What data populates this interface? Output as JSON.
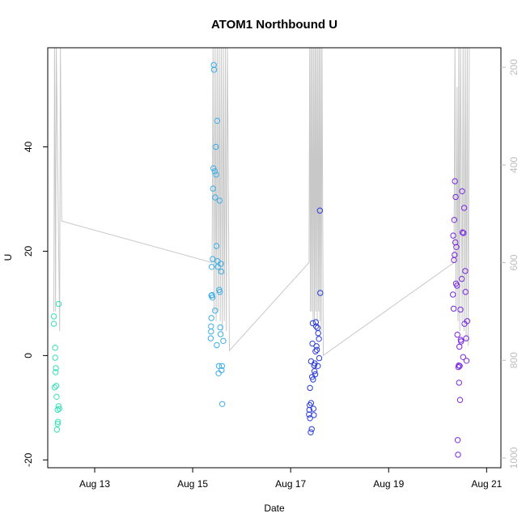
{
  "chart_data": {
    "type": "scatter",
    "title": "ATOM1 Northbound U",
    "xlabel": "Date",
    "ylabel": "U",
    "xlim": [
      "2023-08-12 01:00",
      "2023-08-21 07:00"
    ],
    "ylim": [
      -21.5,
      59
    ],
    "x_ticks": [
      {
        "date": "2023-08-13",
        "label": "Aug 13"
      },
      {
        "date": "2023-08-15",
        "label": "Aug 15"
      },
      {
        "date": "2023-08-17",
        "label": "Aug 17"
      },
      {
        "date": "2023-08-19",
        "label": "Aug 19"
      },
      {
        "date": "2023-08-21",
        "label": "Aug 21"
      }
    ],
    "y_ticks": [
      -20,
      0,
      20,
      40
    ],
    "y2_ticks": [
      200,
      400,
      600,
      800,
      1000
    ],
    "y2_lim": [
      1020,
      160
    ],
    "grid": false,
    "legend": "none",
    "colors": {
      "line": "#c8c8c8",
      "g1": "#36e0b8",
      "g2": "#3aaee8",
      "g3": "#2a3bd8",
      "g4": "#7a2ae0"
    },
    "depth_trace": [
      [
        "2023-08-12 04:00",
        700
      ],
      [
        "2023-08-12 04:20",
        150
      ],
      [
        "2023-08-12 04:50",
        700
      ],
      [
        "2023-08-12 05:10",
        150
      ],
      [
        "2023-08-12 06:50",
        740
      ],
      [
        "2023-08-12 07:10",
        150
      ],
      [
        "2023-08-12 07:50",
        515
      ],
      [
        "2023-08-15 09:30",
        600
      ],
      [
        "2023-08-15 10:00",
        150
      ],
      [
        "2023-08-15 10:30",
        700
      ],
      [
        "2023-08-15 11:00",
        150
      ],
      [
        "2023-08-15 11:30",
        720
      ],
      [
        "2023-08-15 12:00",
        150
      ],
      [
        "2023-08-15 12:30",
        700
      ],
      [
        "2023-08-15 13:00",
        150
      ],
      [
        "2023-08-15 13:30",
        720
      ],
      [
        "2023-08-15 14:00",
        150
      ],
      [
        "2023-08-15 14:30",
        740
      ],
      [
        "2023-08-15 15:00",
        150
      ],
      [
        "2023-08-15 15:30",
        720
      ],
      [
        "2023-08-15 16:00",
        150
      ],
      [
        "2023-08-15 16:30",
        740
      ],
      [
        "2023-08-15 17:00",
        150
      ],
      [
        "2023-08-15 18:00",
        780
      ],
      [
        "2023-08-17 09:00",
        600
      ],
      [
        "2023-08-17 09:20",
        150
      ],
      [
        "2023-08-17 09:40",
        700
      ],
      [
        "2023-08-17 10:00",
        150
      ],
      [
        "2023-08-17 10:20",
        700
      ],
      [
        "2023-08-17 10:40",
        150
      ],
      [
        "2023-08-17 11:00",
        720
      ],
      [
        "2023-08-17 11:20",
        150
      ],
      [
        "2023-08-17 11:40",
        720
      ],
      [
        "2023-08-17 12:00",
        150
      ],
      [
        "2023-08-17 12:20",
        700
      ],
      [
        "2023-08-17 12:40",
        150
      ],
      [
        "2023-08-17 13:00",
        720
      ],
      [
        "2023-08-17 13:20",
        150
      ],
      [
        "2023-08-17 13:40",
        700
      ],
      [
        "2023-08-17 14:00",
        150
      ],
      [
        "2023-08-17 14:20",
        720
      ],
      [
        "2023-08-17 14:40",
        150
      ],
      [
        "2023-08-17 15:00",
        740
      ],
      [
        "2023-08-17 15:20",
        150
      ],
      [
        "2023-08-17 16:00",
        790
      ],
      [
        "2023-08-20 08:00",
        600
      ],
      [
        "2023-08-20 08:30",
        150
      ],
      [
        "2023-08-20 09:00",
        700
      ],
      [
        "2023-08-20 09:30",
        240
      ],
      [
        "2023-08-20 10:00",
        720
      ],
      [
        "2023-08-20 10:20",
        160
      ],
      [
        "2023-08-20 10:50",
        740
      ],
      [
        "2023-08-20 11:10",
        150
      ],
      [
        "2023-08-20 12:00",
        720
      ],
      [
        "2023-08-20 12:30",
        150
      ],
      [
        "2023-08-20 13:00",
        740
      ],
      [
        "2023-08-20 13:30",
        150
      ],
      [
        "2023-08-20 14:00",
        760
      ],
      [
        "2023-08-20 14:30",
        150
      ],
      [
        "2023-08-20 15:00",
        770
      ],
      [
        "2023-08-20 15:30",
        150
      ]
    ],
    "series": [
      {
        "color_key": "g1",
        "points": [
          [
            "2023-08-12 04:00",
            7.5
          ],
          [
            "2023-08-12 04:00",
            6.1
          ],
          [
            "2023-08-12 04:20",
            -6.1
          ],
          [
            "2023-08-12 04:40",
            1.5
          ],
          [
            "2023-08-12 04:40",
            -0.4
          ],
          [
            "2023-08-12 04:50",
            -3.2
          ],
          [
            "2023-08-12 05:00",
            -2.4
          ],
          [
            "2023-08-12 05:10",
            -5.8
          ],
          [
            "2023-08-12 05:20",
            -7.9
          ],
          [
            "2023-08-12 05:30",
            -14.2
          ],
          [
            "2023-08-12 05:50",
            -13.1
          ],
          [
            "2023-08-12 05:50",
            -10.4
          ],
          [
            "2023-08-12 06:00",
            -12.7
          ],
          [
            "2023-08-12 06:20",
            -9.7
          ],
          [
            "2023-08-12 06:20",
            9.9
          ],
          [
            "2023-08-12 06:40",
            -10.2
          ]
        ]
      },
      {
        "color_key": "g2",
        "points": [
          [
            "2023-08-15 08:50",
            3.3
          ],
          [
            "2023-08-15 09:00",
            4.6
          ],
          [
            "2023-08-15 09:00",
            5.6
          ],
          [
            "2023-08-15 09:10",
            7.2
          ],
          [
            "2023-08-15 09:10",
            11.5
          ],
          [
            "2023-08-15 09:20",
            17.0
          ],
          [
            "2023-08-15 09:30",
            11.6
          ],
          [
            "2023-08-15 09:40",
            11.1
          ],
          [
            "2023-08-15 09:50",
            18.5
          ],
          [
            "2023-08-15 10:00",
            32.0
          ],
          [
            "2023-08-15 10:10",
            35.9
          ],
          [
            "2023-08-15 10:20",
            55.7
          ],
          [
            "2023-08-15 10:30",
            54.8
          ],
          [
            "2023-08-15 10:50",
            35.3
          ],
          [
            "2023-08-15 11:00",
            30.3
          ],
          [
            "2023-08-15 11:00",
            8.6
          ],
          [
            "2023-08-15 11:20",
            40.0
          ],
          [
            "2023-08-15 11:30",
            34.7
          ],
          [
            "2023-08-15 11:40",
            21.0
          ],
          [
            "2023-08-15 11:50",
            2.0
          ],
          [
            "2023-08-15 12:00",
            45.0
          ],
          [
            "2023-08-15 12:10",
            18.1
          ],
          [
            "2023-08-15 12:20",
            17.0
          ],
          [
            "2023-08-15 12:40",
            -3.4
          ],
          [
            "2023-08-15 12:50",
            -2.0
          ],
          [
            "2023-08-15 13:00",
            12.6
          ],
          [
            "2023-08-15 13:10",
            29.7
          ],
          [
            "2023-08-15 13:20",
            12.2
          ],
          [
            "2023-08-15 13:30",
            5.4
          ],
          [
            "2023-08-15 13:40",
            4.1
          ],
          [
            "2023-08-15 13:50",
            17.6
          ],
          [
            "2023-08-15 14:00",
            16.1
          ],
          [
            "2023-08-15 14:10",
            -2.8
          ],
          [
            "2023-08-15 14:20",
            -2.0
          ],
          [
            "2023-08-15 14:30",
            -9.3
          ],
          [
            "2023-08-15 15:00",
            2.8
          ]
        ]
      },
      {
        "color_key": "g3",
        "points": [
          [
            "2023-08-17 09:00",
            -11.3
          ],
          [
            "2023-08-17 09:10",
            -10.4
          ],
          [
            "2023-08-17 09:20",
            -9.5
          ],
          [
            "2023-08-17 09:30",
            -6.2
          ],
          [
            "2023-08-17 09:30",
            -12.0
          ],
          [
            "2023-08-17 09:50",
            -14.7
          ],
          [
            "2023-08-17 10:00",
            -1.1
          ],
          [
            "2023-08-17 10:00",
            -9.1
          ],
          [
            "2023-08-17 10:20",
            -14.1
          ],
          [
            "2023-08-17 10:30",
            -4.1
          ],
          [
            "2023-08-17 10:40",
            2.3
          ],
          [
            "2023-08-17 10:50",
            6.2
          ],
          [
            "2023-08-17 11:00",
            -4.6
          ],
          [
            "2023-08-17 11:10",
            -10.2
          ],
          [
            "2023-08-17 11:20",
            -11.4
          ],
          [
            "2023-08-17 11:30",
            -1.9
          ],
          [
            "2023-08-17 11:40",
            -3.0
          ],
          [
            "2023-08-17 11:50",
            -1.5
          ],
          [
            "2023-08-17 12:00",
            -3.6
          ],
          [
            "2023-08-17 12:10",
            0.8
          ],
          [
            "2023-08-17 12:20",
            6.4
          ],
          [
            "2023-08-17 12:30",
            5.6
          ],
          [
            "2023-08-17 12:40",
            1.8
          ],
          [
            "2023-08-17 12:50",
            1.1
          ],
          [
            "2023-08-17 13:10",
            5.3
          ],
          [
            "2023-08-17 13:20",
            -2.0
          ],
          [
            "2023-08-17 13:30",
            4.3
          ],
          [
            "2023-08-17 13:50",
            3.2
          ],
          [
            "2023-08-17 14:00",
            -0.5
          ],
          [
            "2023-08-17 14:20",
            27.8
          ],
          [
            "2023-08-17 14:30",
            12.0
          ]
        ]
      },
      {
        "color_key": "g4",
        "points": [
          [
            "2023-08-20 07:30",
            11.7
          ],
          [
            "2023-08-20 07:40",
            23.0
          ],
          [
            "2023-08-20 07:50",
            9.0
          ],
          [
            "2023-08-20 08:00",
            18.3
          ],
          [
            "2023-08-20 08:10",
            26.0
          ],
          [
            "2023-08-20 08:20",
            19.3
          ],
          [
            "2023-08-20 08:30",
            33.4
          ],
          [
            "2023-08-20 08:40",
            21.7
          ],
          [
            "2023-08-20 08:50",
            30.4
          ],
          [
            "2023-08-20 09:00",
            13.8
          ],
          [
            "2023-08-20 09:10",
            20.8
          ],
          [
            "2023-08-20 09:30",
            13.4
          ],
          [
            "2023-08-20 09:40",
            4.0
          ],
          [
            "2023-08-20 09:50",
            -16.2
          ],
          [
            "2023-08-20 10:00",
            -19.0
          ],
          [
            "2023-08-20 10:10",
            -2.2
          ],
          [
            "2023-08-20 10:20",
            -1.9
          ],
          [
            "2023-08-20 10:30",
            -5.2
          ],
          [
            "2023-08-20 10:40",
            1.7
          ],
          [
            "2023-08-20 10:50",
            -2.0
          ],
          [
            "2023-08-20 11:00",
            -8.5
          ],
          [
            "2023-08-20 11:10",
            8.8
          ],
          [
            "2023-08-20 11:20",
            3.0
          ],
          [
            "2023-08-20 11:30",
            2.7
          ],
          [
            "2023-08-20 11:50",
            14.7
          ],
          [
            "2023-08-20 12:00",
            31.5
          ],
          [
            "2023-08-20 12:10",
            23.6
          ],
          [
            "2023-08-20 12:30",
            -0.3
          ],
          [
            "2023-08-20 12:40",
            23.5
          ],
          [
            "2023-08-20 13:00",
            28.3
          ],
          [
            "2023-08-20 13:10",
            6.1
          ],
          [
            "2023-08-20 13:30",
            16.2
          ],
          [
            "2023-08-20 13:40",
            12.2
          ],
          [
            "2023-08-20 14:00",
            3.3
          ],
          [
            "2023-08-20 14:10",
            -1.0
          ],
          [
            "2023-08-20 14:30",
            6.6
          ]
        ]
      }
    ]
  }
}
